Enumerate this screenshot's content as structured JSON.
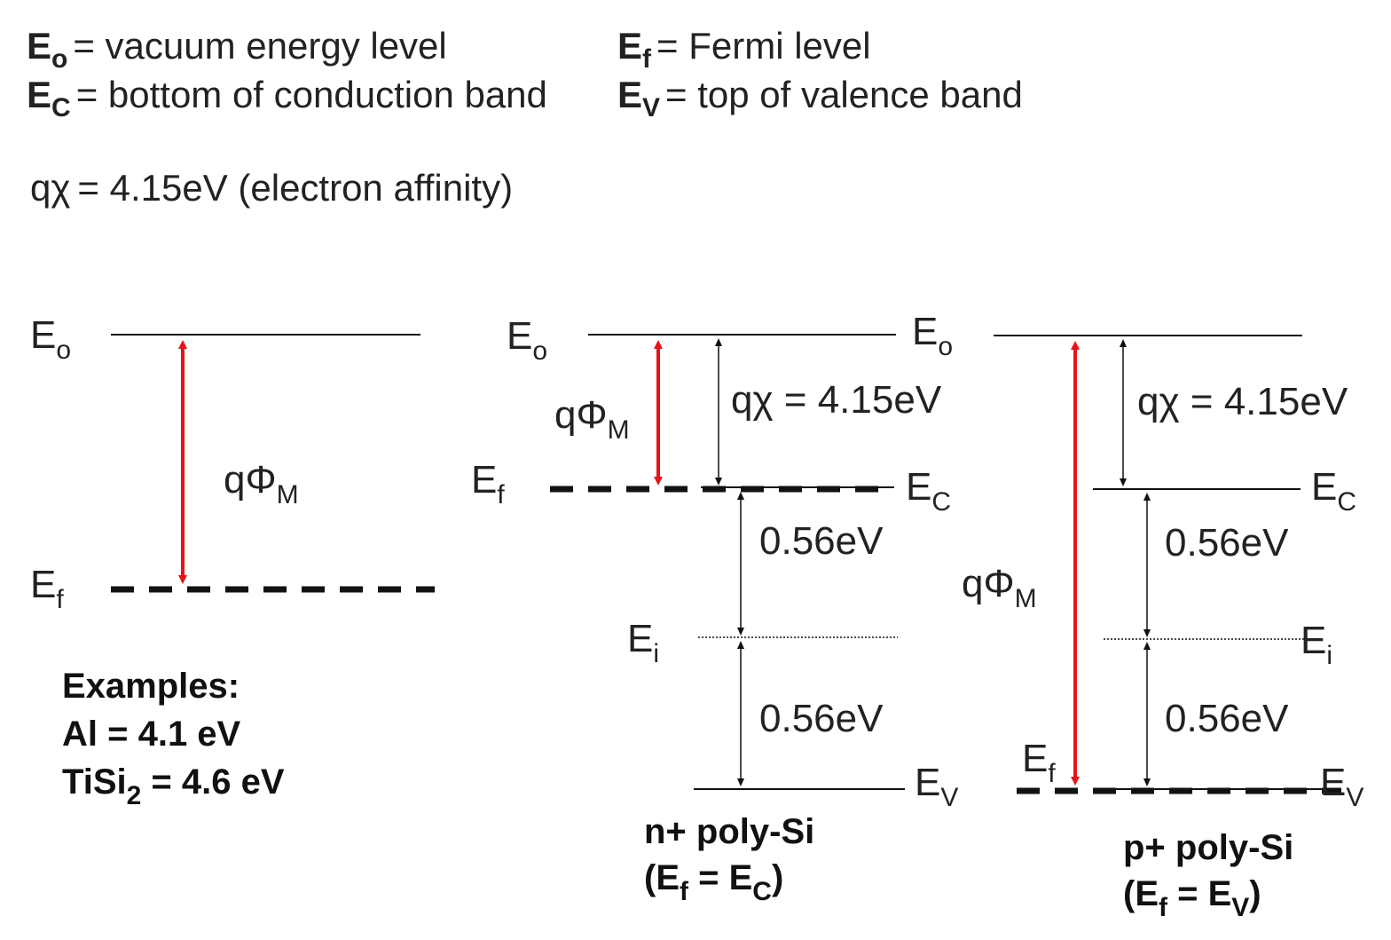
{
  "legend": {
    "e0": {
      "sym": "E",
      "sub": "o",
      "text": "= vacuum energy level"
    },
    "ec": {
      "sym": "E",
      "sub": "C",
      "text": "= bottom of conduction band"
    },
    "ef": {
      "sym": "E",
      "sub": "f",
      "text": "= Fermi level"
    },
    "ev": {
      "sym": "E",
      "sub": "V",
      "text": "= top of  valence band"
    },
    "affinity": {
      "sym": "qχ",
      "text": "= 4.15eV (electron affinity)"
    }
  },
  "metal": {
    "e0": {
      "sym": "E",
      "sub": "o"
    },
    "ef": {
      "sym": "E",
      "sub": "f"
    },
    "phi": {
      "sym": "qΦ",
      "sub": "M"
    },
    "examples": {
      "title": "Examples:",
      "al": "Al = 4.1 eV",
      "tisi_a": "TiSi",
      "tisi_sub": "2",
      "tisi_b": " = 4.6 eV"
    }
  },
  "npoly": {
    "e0_left": {
      "sym": "E",
      "sub": "o"
    },
    "e0_right": {
      "sym": "E",
      "sub": "o"
    },
    "ef": {
      "sym": "E",
      "sub": "f"
    },
    "phi": {
      "sym": "qΦ",
      "sub": "M"
    },
    "chi": "qχ = 4.15eV",
    "ec": {
      "sym": "E",
      "sub": "C"
    },
    "gap_upper": "0.56eV",
    "ei": {
      "sym": "E",
      "sub": "i"
    },
    "gap_lower": "0.56eV",
    "ev": {
      "sym": "E",
      "sub": "V"
    },
    "caption_line1": "n+ poly-Si",
    "caption_line2": {
      "open": "(E",
      "sub1": "f",
      "mid": " =  E",
      "sub2": "C",
      "close": ")"
    }
  },
  "ppoly": {
    "chi": "qχ = 4.15eV",
    "ec": {
      "sym": "E",
      "sub": "C"
    },
    "gap_upper": "0.56eV",
    "phi": {
      "sym": "qΦ",
      "sub": "M"
    },
    "ei": {
      "sym": "E",
      "sub": "i"
    },
    "gap_lower": "0.56eV",
    "ef": {
      "sym": "E",
      "sub": "f"
    },
    "ev": {
      "sym": "E",
      "sub": "V"
    },
    "caption_line1": "p+ poly-Si",
    "caption_line2": {
      "open": "(E",
      "sub1": "f",
      "mid": " =  E",
      "sub2": "V",
      "close": ")"
    }
  },
  "colors": {
    "arrow_red": "#e8121b",
    "line": "#111111"
  }
}
